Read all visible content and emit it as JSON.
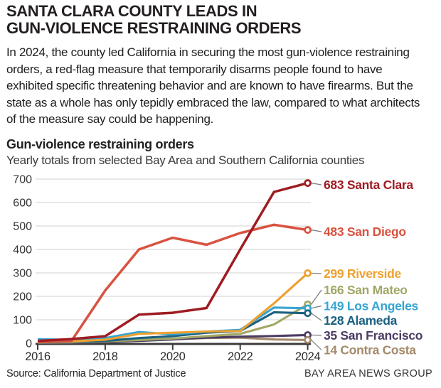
{
  "header": {
    "title_line1": "SANTA CLARA COUNTY LEADS IN",
    "title_line2": "GUN-VIOLENCE RESTRAINING ORDERS",
    "intro": "In 2024, the county led California in securing the most gun-violence restraining orders, a red-flag measure that temporarily disarms people found to have exhibited specific threatening behavior and are known to have firearms. But the state as a whole has only tepidly embraced the law, compared to what architects of the measure say could be happening."
  },
  "chart": {
    "title": "Gun-violence restraining orders",
    "subtitle": "Yearly totals from selected Bay Area and Southern California counties"
  },
  "chart_data": {
    "type": "line",
    "x": [
      2016,
      2017,
      2018,
      2019,
      2020,
      2021,
      2022,
      2023,
      2024
    ],
    "x_tick_labels": [
      "2016",
      "2018",
      "2020",
      "2022",
      "2024"
    ],
    "ylim": [
      0,
      700
    ],
    "y_ticks": [
      0,
      100,
      200,
      300,
      400,
      500,
      600,
      700
    ],
    "grid": true,
    "legend_position": "right-end-labels",
    "series": [
      {
        "name": "Santa Clara",
        "end_label": "683 Santa Clara",
        "color": "#9e1c21",
        "values": [
          10,
          18,
          30,
          122,
          130,
          150,
          400,
          645,
          683
        ]
      },
      {
        "name": "San Diego",
        "end_label": "483 San Diego",
        "color": "#d95240",
        "values": [
          5,
          10,
          225,
          400,
          450,
          420,
          470,
          505,
          483
        ]
      },
      {
        "name": "Riverside",
        "end_label": "299 Riverside",
        "color": "#efa02f",
        "values": [
          6,
          8,
          15,
          40,
          45,
          50,
          52,
          170,
          299
        ]
      },
      {
        "name": "San Mateo",
        "end_label": "166 San Mateo",
        "color": "#a2a766",
        "values": [
          3,
          4,
          8,
          14,
          20,
          30,
          40,
          80,
          166
        ]
      },
      {
        "name": "Los Angeles",
        "end_label": "149 Los Angeles",
        "color": "#36a5d3",
        "values": [
          17,
          15,
          22,
          48,
          38,
          50,
          57,
          152,
          149
        ]
      },
      {
        "name": "Alameda",
        "end_label": "128 Alameda",
        "color": "#1b6181",
        "values": [
          5,
          6,
          10,
          22,
          30,
          45,
          52,
          132,
          128
        ]
      },
      {
        "name": "San Francisco",
        "end_label": "35 San Francisco",
        "color": "#4c3c63",
        "values": [
          2,
          2,
          5,
          10,
          16,
          24,
          28,
          31,
          35
        ]
      },
      {
        "name": "Contra Costa",
        "end_label": "14 Contra Costa",
        "color": "#a58a6b",
        "values": [
          2,
          3,
          5,
          12,
          18,
          22,
          24,
          16,
          14
        ]
      }
    ],
    "colors": {
      "grid": "#d9d9d9",
      "axis": "#3c3c3c",
      "tick_label": "#333333",
      "leader_line": "#7a7a7a"
    }
  },
  "footer": {
    "source": "Source: California Department of Justice",
    "credit": "BAY AREA NEWS GROUP"
  }
}
